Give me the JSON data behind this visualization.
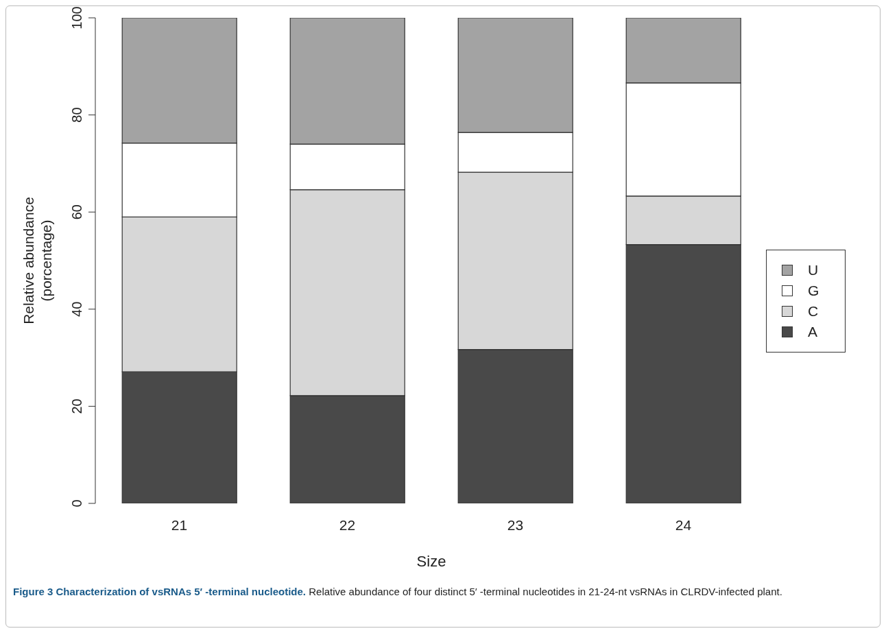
{
  "chart_data": {
    "type": "bar",
    "stacked": true,
    "categories": [
      "21",
      "22",
      "23",
      "24"
    ],
    "series": [
      {
        "name": "A",
        "color": "#494949",
        "values": [
          27.1,
          22.2,
          31.7,
          53.3
        ]
      },
      {
        "name": "C",
        "color": "#d7d7d7",
        "values": [
          31.9,
          42.4,
          36.5,
          10.0
        ]
      },
      {
        "name": "G",
        "color": "#ffffff",
        "values": [
          15.2,
          9.4,
          8.2,
          23.3
        ]
      },
      {
        "name": "U",
        "color": "#a3a3a3",
        "values": [
          25.8,
          26.0,
          23.6,
          13.4
        ]
      }
    ],
    "xlabel": "Size",
    "ylabel": "Relative abundance\n(porcentage)",
    "ylim": [
      0,
      100
    ],
    "yticks": [
      0,
      20,
      40,
      60,
      80,
      100
    ],
    "legend": "right",
    "title": "Figure 3 Characterization of vsRNAs 5′ -terminal nucleotide.",
    "annotations": [
      "Relative abundance of four distinct 5′ -terminal nucleotides in 21-24-nt vsRNAs in CLRDV-infected plant."
    ]
  }
}
